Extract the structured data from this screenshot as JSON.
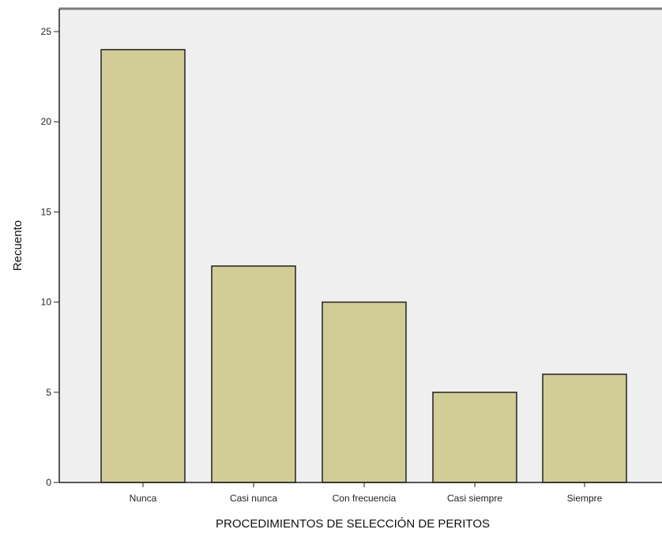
{
  "chart_data": {
    "type": "bar",
    "title": "",
    "xlabel": "PROCEDIMIENTOS DE SELECCIÓN DE PERITOS",
    "ylabel": "Recuento",
    "categories": [
      "Nunca",
      "Casi nunca",
      "Con frecuencia",
      "Casi siempre",
      "Siempre"
    ],
    "values": [
      24,
      12,
      10,
      5,
      6
    ],
    "ylim": [
      0,
      25
    ],
    "yticks": [
      0,
      5,
      10,
      15,
      20,
      25
    ],
    "grid": false,
    "legend": "none",
    "colors": {
      "bar_fill": "#d2cc97",
      "bar_stroke": "#222222",
      "plot_background": "#efefef",
      "frame_top": "#7b7b7b",
      "axis": "#222222"
    }
  }
}
